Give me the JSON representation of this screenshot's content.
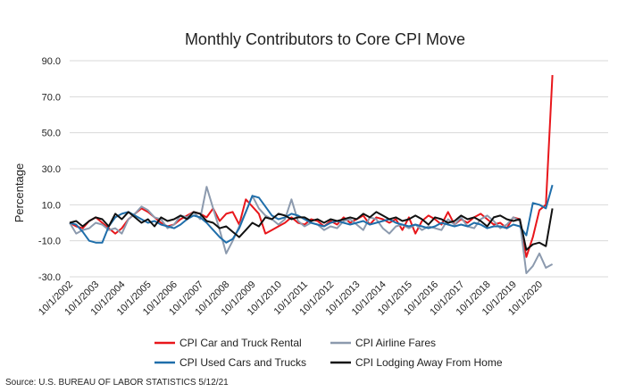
{
  "chart_data": {
    "type": "line",
    "title": "Monthly Contributors to Core CPI Move",
    "xlabel": "",
    "ylabel": "Percentage",
    "source": "Source: U.S. BUREAU OF LABOR STATISTICS 5/12/21",
    "ylim": [
      -30,
      90
    ],
    "yticks": [
      "90.0",
      "70.0",
      "50.0",
      "30.0",
      "10.0",
      "-10.0",
      "-30.0"
    ],
    "xlim": [
      "10/1/2002",
      "10/1/2020"
    ],
    "xticks": [
      "10/1/2002",
      "10/1/2003",
      "10/1/2004",
      "10/1/2005",
      "10/1/2006",
      "10/1/2007",
      "10/1/2008",
      "10/1/2009",
      "10/1/2010",
      "10/1/2011",
      "10/1/2012",
      "10/1/2013",
      "10/1/2014",
      "10/1/2015",
      "10/1/2016",
      "10/1/2017",
      "10/1/2018",
      "10/1/2019",
      "10/1/2020"
    ],
    "grid": true,
    "legend": "bottom",
    "series": [
      {
        "name": "CPI Car and Truck Rental",
        "color": "#e8161b",
        "x": [
          "10/1/2002",
          "1/1/2003",
          "4/1/2003",
          "7/1/2003",
          "10/1/2003",
          "1/1/2004",
          "4/1/2004",
          "7/1/2004",
          "10/1/2004",
          "1/1/2005",
          "4/1/2005",
          "7/1/2005",
          "10/1/2005",
          "1/1/2006",
          "4/1/2006",
          "7/1/2006",
          "10/1/2006",
          "1/1/2007",
          "4/1/2007",
          "7/1/2007",
          "10/1/2007",
          "1/1/2008",
          "4/1/2008",
          "7/1/2008",
          "10/1/2008",
          "1/1/2009",
          "4/1/2009",
          "7/1/2009",
          "10/1/2009",
          "1/1/2010",
          "4/1/2010",
          "7/1/2010",
          "10/1/2010",
          "1/1/2011",
          "4/1/2011",
          "7/1/2011",
          "10/1/2011",
          "1/1/2012",
          "4/1/2012",
          "7/1/2012",
          "10/1/2012",
          "1/1/2013",
          "4/1/2013",
          "7/1/2013",
          "10/1/2013",
          "1/1/2014",
          "4/1/2014",
          "7/1/2014",
          "10/1/2014",
          "1/1/2015",
          "4/1/2015",
          "7/1/2015",
          "10/1/2015",
          "1/1/2016",
          "4/1/2016",
          "7/1/2016",
          "10/1/2016",
          "1/1/2017",
          "4/1/2017",
          "7/1/2017",
          "10/1/2017",
          "1/1/2018",
          "4/1/2018",
          "7/1/2018",
          "10/1/2018",
          "1/1/2019",
          "4/1/2019",
          "7/1/2019",
          "10/1/2019",
          "1/1/2020",
          "4/1/2020",
          "7/1/2020",
          "10/1/2020",
          "1/1/2021",
          "4/1/2021"
        ],
        "y": [
          0,
          -2,
          -3,
          1,
          3,
          0,
          -3,
          -6,
          -3,
          2,
          5,
          8,
          6,
          3,
          0,
          -2,
          -1,
          2,
          4,
          6,
          5,
          3,
          8,
          1,
          5,
          6,
          -1,
          13,
          9,
          5,
          -6,
          -4,
          -2,
          0,
          3,
          0,
          -1,
          2,
          1,
          -2,
          1,
          -1,
          3,
          0,
          2,
          4,
          -1,
          3,
          2,
          0,
          2,
          -4,
          3,
          -6,
          1,
          4,
          2,
          -1,
          6,
          -1,
          2,
          0,
          3,
          5,
          2,
          -1,
          0,
          -3,
          3,
          2,
          -19,
          -8,
          7,
          10,
          82
        ]
      },
      {
        "name": "CPI Airline Fares",
        "color": "#8c9aae",
        "x": [
          "10/1/2002",
          "1/1/2003",
          "4/1/2003",
          "7/1/2003",
          "10/1/2003",
          "1/1/2004",
          "4/1/2004",
          "7/1/2004",
          "10/1/2004",
          "1/1/2005",
          "4/1/2005",
          "7/1/2005",
          "10/1/2005",
          "1/1/2006",
          "4/1/2006",
          "7/1/2006",
          "10/1/2006",
          "1/1/2007",
          "4/1/2007",
          "7/1/2007",
          "10/1/2007",
          "1/1/2008",
          "4/1/2008",
          "7/1/2008",
          "10/1/2008",
          "1/1/2009",
          "4/1/2009",
          "7/1/2009",
          "10/1/2009",
          "1/1/2010",
          "4/1/2010",
          "7/1/2010",
          "10/1/2010",
          "1/1/2011",
          "4/1/2011",
          "7/1/2011",
          "10/1/2011",
          "1/1/2012",
          "4/1/2012",
          "7/1/2012",
          "10/1/2012",
          "1/1/2013",
          "4/1/2013",
          "7/1/2013",
          "10/1/2013",
          "1/1/2014",
          "4/1/2014",
          "7/1/2014",
          "10/1/2014",
          "1/1/2015",
          "4/1/2015",
          "7/1/2015",
          "10/1/2015",
          "1/1/2016",
          "4/1/2016",
          "7/1/2016",
          "10/1/2016",
          "1/1/2017",
          "4/1/2017",
          "7/1/2017",
          "10/1/2017",
          "1/1/2018",
          "4/1/2018",
          "7/1/2018",
          "10/1/2018",
          "1/1/2019",
          "4/1/2019",
          "7/1/2019",
          "10/1/2019",
          "1/1/2020",
          "4/1/2020",
          "7/1/2020",
          "10/1/2020",
          "1/1/2021",
          "4/1/2021"
        ],
        "y": [
          0,
          -6,
          -4,
          -3,
          0,
          -1,
          -4,
          -3,
          -6,
          2,
          5,
          9,
          7,
          3,
          2,
          -3,
          -1,
          4,
          3,
          6,
          2,
          20,
          8,
          -4,
          -17,
          -10,
          -2,
          6,
          15,
          8,
          4,
          2,
          -1,
          2,
          13,
          1,
          -2,
          0,
          -1,
          -4,
          -2,
          -3,
          1,
          2,
          -1,
          -4,
          3,
          2,
          -3,
          -6,
          -2,
          -1,
          -3,
          -1,
          -4,
          -2,
          -3,
          -4,
          2,
          -1,
          3,
          -2,
          -3,
          2,
          4,
          1,
          -3,
          -1,
          3,
          1,
          -28,
          -24,
          -17,
          -25,
          -23
        ]
      },
      {
        "name": "CPI Used Cars and Trucks",
        "color": "#1f6eaa",
        "x": [
          "10/1/2002",
          "1/1/2003",
          "4/1/2003",
          "7/1/2003",
          "10/1/2003",
          "1/1/2004",
          "4/1/2004",
          "7/1/2004",
          "10/1/2004",
          "1/1/2005",
          "4/1/2005",
          "7/1/2005",
          "10/1/2005",
          "1/1/2006",
          "4/1/2006",
          "7/1/2006",
          "10/1/2006",
          "1/1/2007",
          "4/1/2007",
          "7/1/2007",
          "10/1/2007",
          "1/1/2008",
          "4/1/2008",
          "7/1/2008",
          "10/1/2008",
          "1/1/2009",
          "4/1/2009",
          "7/1/2009",
          "10/1/2009",
          "1/1/2010",
          "4/1/2010",
          "7/1/2010",
          "10/1/2010",
          "1/1/2011",
          "4/1/2011",
          "7/1/2011",
          "10/1/2011",
          "1/1/2012",
          "4/1/2012",
          "7/1/2012",
          "10/1/2012",
          "1/1/2013",
          "4/1/2013",
          "7/1/2013",
          "10/1/2013",
          "1/1/2014",
          "4/1/2014",
          "7/1/2014",
          "10/1/2014",
          "1/1/2015",
          "4/1/2015",
          "7/1/2015",
          "10/1/2015",
          "1/1/2016",
          "4/1/2016",
          "7/1/2016",
          "10/1/2016",
          "1/1/2017",
          "4/1/2017",
          "7/1/2017",
          "10/1/2017",
          "1/1/2018",
          "4/1/2018",
          "7/1/2018",
          "10/1/2018",
          "1/1/2019",
          "4/1/2019",
          "7/1/2019",
          "10/1/2019",
          "1/1/2020",
          "4/1/2020",
          "7/1/2020",
          "10/1/2020",
          "1/1/2021",
          "4/1/2021"
        ],
        "y": [
          0,
          -1,
          -5,
          -10,
          -11,
          -11,
          -2,
          3,
          5,
          6,
          4,
          2,
          0,
          1,
          -1,
          -2,
          -3,
          -1,
          2,
          4,
          3,
          0,
          -4,
          -8,
          -11,
          -9,
          -3,
          6,
          15,
          14,
          9,
          4,
          2,
          3,
          5,
          4,
          2,
          0,
          -1,
          -2,
          0,
          1,
          0,
          -1,
          0,
          1,
          -1,
          0,
          1,
          2,
          0,
          -1,
          -2,
          -1,
          -2,
          -3,
          -2,
          0,
          -1,
          -2,
          -1,
          -2,
          0,
          -1,
          -3,
          -2,
          -2,
          -3,
          -1,
          -2,
          -7,
          11,
          10,
          8,
          21
        ]
      },
      {
        "name": "CPI Lodging Away From Home",
        "color": "#111111",
        "x": [
          "10/1/2002",
          "1/1/2003",
          "4/1/2003",
          "7/1/2003",
          "10/1/2003",
          "1/1/2004",
          "4/1/2004",
          "7/1/2004",
          "10/1/2004",
          "1/1/2005",
          "4/1/2005",
          "7/1/2005",
          "10/1/2005",
          "1/1/2006",
          "4/1/2006",
          "7/1/2006",
          "10/1/2006",
          "1/1/2007",
          "4/1/2007",
          "7/1/2007",
          "10/1/2007",
          "1/1/2008",
          "4/1/2008",
          "7/1/2008",
          "10/1/2008",
          "1/1/2009",
          "4/1/2009",
          "7/1/2009",
          "10/1/2009",
          "1/1/2010",
          "4/1/2010",
          "7/1/2010",
          "10/1/2010",
          "1/1/2011",
          "4/1/2011",
          "7/1/2011",
          "10/1/2011",
          "1/1/2012",
          "4/1/2012",
          "7/1/2012",
          "10/1/2012",
          "1/1/2013",
          "4/1/2013",
          "7/1/2013",
          "10/1/2013",
          "1/1/2014",
          "4/1/2014",
          "7/1/2014",
          "10/1/2014",
          "1/1/2015",
          "4/1/2015",
          "7/1/2015",
          "10/1/2015",
          "1/1/2016",
          "4/1/2016",
          "7/1/2016",
          "10/1/2016",
          "1/1/2017",
          "4/1/2017",
          "7/1/2017",
          "10/1/2017",
          "1/1/2018",
          "4/1/2018",
          "7/1/2018",
          "10/1/2018",
          "1/1/2019",
          "4/1/2019",
          "7/1/2019",
          "10/1/2019",
          "1/1/2020",
          "4/1/2020",
          "7/1/2020",
          "10/1/2020",
          "1/1/2021",
          "4/1/2021"
        ],
        "y": [
          0,
          1,
          -2,
          1,
          3,
          2,
          -2,
          5,
          2,
          6,
          3,
          0,
          2,
          -2,
          3,
          1,
          2,
          4,
          2,
          6,
          5,
          1,
          0,
          -3,
          -2,
          -5,
          -8,
          -4,
          0,
          -2,
          3,
          2,
          5,
          4,
          2,
          3,
          3,
          1,
          2,
          0,
          2,
          1,
          2,
          3,
          2,
          5,
          3,
          6,
          4,
          2,
          3,
          1,
          2,
          4,
          2,
          -1,
          3,
          2,
          0,
          1,
          4,
          2,
          3,
          1,
          -2,
          3,
          4,
          2,
          1,
          2,
          -15,
          -12,
          -11,
          -13,
          8
        ]
      }
    ]
  }
}
